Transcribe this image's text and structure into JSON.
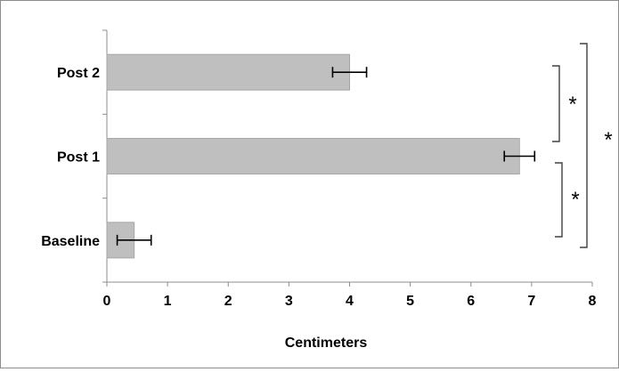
{
  "chart_data": {
    "type": "bar",
    "orientation": "horizontal",
    "title": "",
    "xlabel": "Centimeters",
    "ylabel": "",
    "categories": [
      "Baseline",
      "Post 1",
      "Post 2"
    ],
    "values": [
      0.45,
      6.8,
      4.0
    ],
    "error": [
      0.28,
      0.25,
      0.28
    ],
    "xlim": [
      0,
      8
    ],
    "xticks": [
      "0",
      "1",
      "2",
      "3",
      "4",
      "5",
      "6",
      "7",
      "8"
    ],
    "grid": false,
    "legend": "none",
    "colors": {
      "bar": "#bfbfbf",
      "bar_edge": "#a6a6a6",
      "axis": "#8c8c8c",
      "error_bar": "#000000",
      "bracket": "#404040"
    },
    "annotations": [
      {
        "label": "*",
        "between": [
          "Post 2",
          "Post 1"
        ]
      },
      {
        "label": "*",
        "between": [
          "Post 1",
          "Baseline"
        ]
      },
      {
        "label": "*",
        "between": [
          "Post 2",
          "Baseline"
        ]
      }
    ]
  }
}
